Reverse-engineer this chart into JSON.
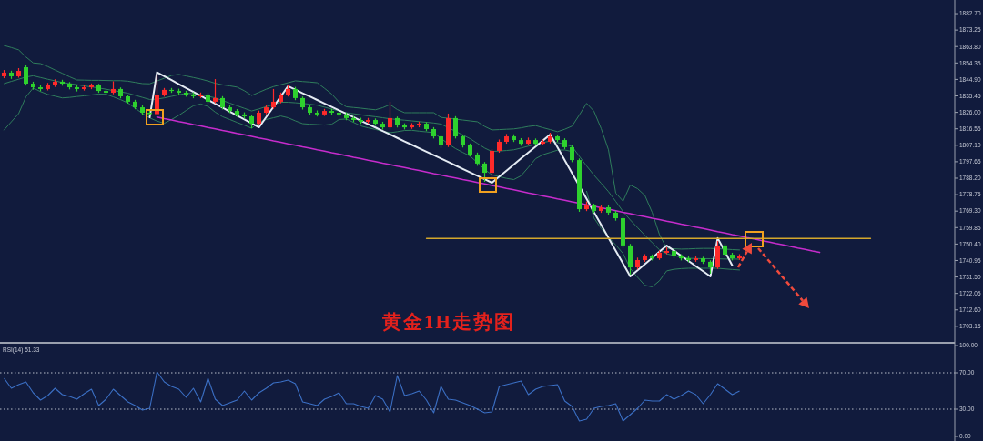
{
  "chart_data": [
    {
      "type": "candlestick",
      "title": "黄金1H走势图",
      "categories": [
        null,
        null,
        null,
        null,
        null,
        null,
        null,
        null,
        null,
        null,
        null,
        null,
        null,
        null,
        null,
        null,
        null,
        null,
        null,
        null,
        null,
        null,
        null,
        null,
        null,
        null,
        null,
        null,
        null,
        null,
        null,
        null,
        null,
        null,
        null,
        null,
        null,
        null,
        null,
        null,
        null,
        null,
        null,
        null,
        null,
        null,
        null,
        null,
        null,
        null,
        null,
        null,
        null,
        null,
        null,
        null,
        null,
        null,
        null,
        null,
        null,
        null,
        null,
        null,
        null,
        null,
        null,
        null,
        null,
        null,
        null,
        null,
        null,
        null,
        null,
        null,
        null,
        null,
        null,
        null,
        null,
        null,
        null,
        null,
        null,
        null,
        null,
        null,
        null,
        null,
        null,
        null,
        null,
        null,
        null,
        null,
        null,
        null,
        null,
        null,
        null,
        null,
        null,
        null,
        null,
        null,
        null,
        null,
        null,
        null,
        null,
        null,
        null,
        null,
        null,
        null,
        null,
        null,
        null,
        null
      ],
      "ohlc": [
        [
          1846.7,
          1850.3,
          1845.6,
          1848.8
        ],
        [
          1848.8,
          1849.9,
          1845.2,
          1846.7
        ],
        [
          1846.7,
          1851.4,
          1845.9,
          1849.8
        ],
        [
          1851.9,
          1853.0,
          1841.4,
          1842.5
        ],
        [
          1842.5,
          1843.6,
          1839.0,
          1840.4
        ],
        [
          1840.4,
          1841.8,
          1838.1,
          1839.4
        ],
        [
          1839.4,
          1842.9,
          1838.6,
          1841.5
        ],
        [
          1841.5,
          1845.0,
          1840.6,
          1843.6
        ],
        [
          1843.6,
          1844.7,
          1841.3,
          1842.5
        ],
        [
          1842.5,
          1843.4,
          1839.2,
          1840.4
        ],
        [
          1840.4,
          1841.5,
          1838.0,
          1839.4
        ],
        [
          1839.4,
          1841.8,
          1838.5,
          1840.4
        ],
        [
          1840.4,
          1842.6,
          1839.3,
          1841.5
        ],
        [
          1841.5,
          1842.4,
          1837.2,
          1838.3
        ],
        [
          1838.3,
          1839.5,
          1836.0,
          1837.3
        ],
        [
          1837.3,
          1843.8,
          1836.4,
          1839.4
        ],
        [
          1839.4,
          1840.3,
          1834.0,
          1835.2
        ],
        [
          1835.2,
          1836.1,
          1831.0,
          1832.1
        ],
        [
          1832.1,
          1833.2,
          1827.8,
          1828.9
        ],
        [
          1828.9,
          1830.0,
          1824.7,
          1825.8
        ],
        [
          1825.8,
          1826.9,
          1824.4,
          1825.0
        ],
        [
          1825.0,
          1847.2,
          1824.2,
          1836.0
        ],
        [
          1836.0,
          1840.0,
          1835.0,
          1838.9
        ],
        [
          1838.9,
          1840.0,
          1837.2,
          1838.3
        ],
        [
          1838.3,
          1839.6,
          1836.1,
          1837.3
        ],
        [
          1837.3,
          1838.4,
          1835.0,
          1836.2
        ],
        [
          1836.2,
          1837.5,
          1834.1,
          1835.2
        ],
        [
          1835.2,
          1837.4,
          1834.2,
          1836.2
        ],
        [
          1836.2,
          1837.1,
          1831.0,
          1832.1
        ],
        [
          1832.1,
          1845.1,
          1831.2,
          1834.2
        ],
        [
          1834.2,
          1835.3,
          1827.7,
          1828.9
        ],
        [
          1828.9,
          1830.1,
          1825.6,
          1826.8
        ],
        [
          1826.8,
          1827.9,
          1823.5,
          1824.8
        ],
        [
          1824.8,
          1826.0,
          1822.4,
          1823.7
        ],
        [
          1823.7,
          1824.6,
          1816.9,
          1819.5
        ],
        [
          1819.5,
          1827.0,
          1818.6,
          1825.8
        ],
        [
          1825.8,
          1830.1,
          1824.9,
          1828.9
        ],
        [
          1828.9,
          1839.4,
          1828.0,
          1832.1
        ],
        [
          1832.1,
          1837.4,
          1831.2,
          1836.2
        ],
        [
          1836.2,
          1841.5,
          1835.1,
          1839.4
        ],
        [
          1839.4,
          1840.6,
          1833.0,
          1834.2
        ],
        [
          1834.2,
          1835.1,
          1827.6,
          1828.9
        ],
        [
          1828.9,
          1830.0,
          1824.6,
          1825.8
        ],
        [
          1825.8,
          1827.1,
          1823.6,
          1824.8
        ],
        [
          1824.8,
          1828.0,
          1823.9,
          1826.8
        ],
        [
          1826.8,
          1828.1,
          1824.7,
          1825.8
        ],
        [
          1825.8,
          1826.9,
          1823.5,
          1824.8
        ],
        [
          1824.8,
          1825.9,
          1821.5,
          1822.7
        ],
        [
          1822.7,
          1823.8,
          1820.4,
          1821.6
        ],
        [
          1821.6,
          1822.9,
          1819.4,
          1820.6
        ],
        [
          1820.6,
          1822.8,
          1819.6,
          1821.6
        ],
        [
          1821.6,
          1822.5,
          1818.3,
          1819.5
        ],
        [
          1819.5,
          1820.6,
          1816.1,
          1817.4
        ],
        [
          1817.4,
          1832.1,
          1816.6,
          1822.7
        ],
        [
          1822.7,
          1823.6,
          1817.3,
          1818.5
        ],
        [
          1818.5,
          1819.7,
          1816.2,
          1817.4
        ],
        [
          1817.4,
          1819.8,
          1816.5,
          1818.5
        ],
        [
          1818.5,
          1820.7,
          1817.4,
          1819.5
        ],
        [
          1819.5,
          1820.4,
          1815.2,
          1816.4
        ],
        [
          1816.4,
          1817.5,
          1811.0,
          1812.2
        ],
        [
          1812.2,
          1813.1,
          1805.6,
          1807.0
        ],
        [
          1807.0,
          1825.3,
          1806.1,
          1822.7
        ],
        [
          1822.7,
          1823.8,
          1811.0,
          1812.2
        ],
        [
          1812.2,
          1813.3,
          1805.8,
          1807.0
        ],
        [
          1807.0,
          1808.1,
          1800.6,
          1801.8
        ],
        [
          1801.8,
          1802.9,
          1795.3,
          1796.6
        ],
        [
          1796.6,
          1797.5,
          1786.1,
          1791.3
        ],
        [
          1791.3,
          1805.0,
          1787.2,
          1803.9
        ],
        [
          1803.9,
          1810.4,
          1802.8,
          1809.1
        ],
        [
          1809.1,
          1813.6,
          1808.0,
          1812.2
        ],
        [
          1812.2,
          1813.4,
          1809.0,
          1810.1
        ],
        [
          1810.1,
          1811.2,
          1806.8,
          1808.0
        ],
        [
          1808.0,
          1811.5,
          1807.1,
          1810.1
        ],
        [
          1810.1,
          1811.0,
          1806.9,
          1808.0
        ],
        [
          1808.0,
          1810.3,
          1807.0,
          1809.1
        ],
        [
          1809.1,
          1814.3,
          1808.2,
          1812.2
        ],
        [
          1812.2,
          1813.3,
          1809.0,
          1810.1
        ],
        [
          1810.1,
          1811.1,
          1804.8,
          1806.0
        ],
        [
          1806.0,
          1807.1,
          1797.4,
          1798.6
        ],
        [
          1798.6,
          1799.5,
          1768.9,
          1770.4
        ],
        [
          1770.4,
          1774.8,
          1769.3,
          1772.5
        ],
        [
          1772.5,
          1773.6,
          1768.2,
          1769.4
        ],
        [
          1769.4,
          1773.0,
          1768.3,
          1771.5
        ],
        [
          1771.5,
          1772.6,
          1767.2,
          1768.4
        ],
        [
          1768.4,
          1769.5,
          1763.8,
          1765.2
        ],
        [
          1765.2,
          1766.1,
          1748.2,
          1749.6
        ],
        [
          1749.6,
          1750.5,
          1732.8,
          1737.0
        ],
        [
          1737.0,
          1742.6,
          1735.8,
          1741.2
        ],
        [
          1741.2,
          1744.6,
          1740.1,
          1743.3
        ],
        [
          1743.3,
          1744.4,
          1741.0,
          1742.2
        ],
        [
          1742.2,
          1746.6,
          1741.3,
          1745.4
        ],
        [
          1745.4,
          1748.5,
          1744.5,
          1746.4
        ],
        [
          1746.4,
          1747.5,
          1742.1,
          1743.3
        ],
        [
          1743.3,
          1744.5,
          1741.0,
          1742.2
        ],
        [
          1742.2,
          1743.3,
          1740.0,
          1741.2
        ],
        [
          1741.2,
          1743.5,
          1740.2,
          1742.2
        ],
        [
          1742.2,
          1743.1,
          1739.0,
          1740.2
        ],
        [
          1740.2,
          1741.1,
          1733.4,
          1737.0
        ],
        [
          1737.0,
          1752.2,
          1736.1,
          1749.6
        ],
        [
          1749.6,
          1750.7,
          1743.1,
          1744.3
        ],
        [
          1744.3,
          1745.4,
          1741.0,
          1742.2
        ],
        [
          1742.2,
          1744.6,
          1741.3,
          1743.3
        ],
        null,
        null,
        null,
        null,
        null,
        null,
        null,
        null,
        null,
        null,
        null,
        null,
        null,
        null,
        null,
        null,
        null,
        null
      ],
      "colors": [
        "#ff2a2a",
        "#2ed12e",
        "#ff2a2a",
        "#2ed12e",
        "#2ed12e",
        "#2ed12e",
        "#ff2a2a",
        "#ff2a2a",
        "#2ed12e",
        "#2ed12e",
        "#2ed12e",
        "#ff2a2a",
        "#ff2a2a",
        "#2ed12e",
        "#2ed12e",
        "#ff2a2a",
        "#2ed12e",
        "#2ed12e",
        "#2ed12e",
        "#2ed12e",
        "#2ed12e",
        "#ff2a2a",
        "#ff2a2a",
        "#2ed12e",
        "#2ed12e",
        "#2ed12e",
        "#2ed12e",
        "#ff2a2a",
        "#2ed12e",
        "#ff2a2a",
        "#2ed12e",
        "#2ed12e",
        "#2ed12e",
        "#2ed12e",
        "#2ed12e",
        "#ff2a2a",
        "#ff2a2a",
        "#ff2a2a",
        "#ff2a2a",
        "#ff2a2a",
        "#2ed12e",
        "#2ed12e",
        "#2ed12e",
        "#2ed12e",
        "#ff2a2a",
        "#2ed12e",
        "#2ed12e",
        "#2ed12e",
        "#2ed12e",
        "#2ed12e",
        "#ff2a2a",
        "#2ed12e",
        "#2ed12e",
        "#ff2a2a",
        "#2ed12e",
        "#2ed12e",
        "#ff2a2a",
        "#ff2a2a",
        "#2ed12e",
        "#2ed12e",
        "#2ed12e",
        "#ff2a2a",
        "#2ed12e",
        "#2ed12e",
        "#2ed12e",
        "#2ed12e",
        "#2ed12e",
        "#ff2a2a",
        "#ff2a2a",
        "#ff2a2a",
        "#2ed12e",
        "#2ed12e",
        "#ff2a2a",
        "#2ed12e",
        "#ff2a2a",
        "#ff2a2a",
        "#2ed12e",
        "#2ed12e",
        "#2ed12e",
        "#2ed12e",
        "#ff2a2a",
        "#2ed12e",
        "#ff2a2a",
        "#2ed12e",
        "#2ed12e",
        "#2ed12e",
        "#2ed12e",
        "#ff2a2a",
        "#ff2a2a",
        "#2ed12e",
        "#ff2a2a",
        "#ff2a2a",
        "#2ed12e",
        "#2ed12e",
        "#2ed12e",
        "#ff2a2a",
        "#2ed12e",
        "#2ed12e",
        "#ff2a2a",
        "#2ed12e",
        "#2ed12e",
        "#ff2a2a",
        null,
        null,
        null,
        null,
        null,
        null,
        null,
        null,
        null,
        null,
        null,
        null,
        null,
        null,
        null,
        null,
        null,
        null
      ],
      "series": [
        {
          "type": "line",
          "color": "#2f7d5c",
          "values": [
            1864.4,
            1863.2,
            1861.9,
            1857.8,
            1854.4,
            1854.0,
            1852.3,
            1850.3,
            1848.4,
            1846.4,
            1844.6,
            1844.5,
            1844.4,
            1844.4,
            1844.3,
            1844.2,
            1844.2,
            1843.9,
            1843.2,
            1842.5,
            1842.4,
            1844.0,
            1845.6,
            1847.2,
            1847.8,
            1846.9,
            1846.0,
            1845.1,
            1844.0,
            1842.7,
            1841.8,
            1841.2,
            1840.5,
            1838.4,
            1835.7,
            1837.5,
            1839.3,
            1840.8,
            1841.9,
            1843.0,
            1844.1,
            1843.7,
            1843.4,
            1843.0,
            1839.8,
            1836.5,
            1831.9,
            1829.2,
            1828.8,
            1828.4,
            1827.9,
            1827.5,
            1828.7,
            1830.5,
            1827.6,
            1825.8,
            1825.8,
            1825.8,
            1825.8,
            1825.8,
            1823.1,
            1822.6,
            1822.1,
            1821.6,
            1821.1,
            1820.6,
            1817.9,
            1815.9,
            1816.1,
            1816.3,
            1816.5,
            1817.1,
            1817.9,
            1818.4,
            1817.2,
            1816.1,
            1814.9,
            1816.3,
            1818.1,
            1824.5,
            1831.2,
            1826.7,
            1816.7,
            1804.5,
            1779.7,
            1775.0,
            1784.3,
            1782.2,
            1778.3,
            1768.6,
            1755.9,
            1747.9,
            1747.7,
            1747.5,
            1747.6,
            1747.8,
            1747.9,
            1747.9,
            1747.7,
            1747.5,
            1747.2,
            1747.0,
            null,
            null,
            null,
            null,
            null,
            null,
            null,
            null,
            null,
            null,
            null,
            null,
            null,
            null,
            null,
            null,
            null,
            null
          ]
        },
        {
          "type": "line",
          "color": "#2f7d5c",
          "values": [
            1842.5,
            1843.8,
            1845.0,
            1846.3,
            1847.0,
            1846.0,
            1845.0,
            1844.1,
            1843.1,
            1842.5,
            1841.9,
            1841.2,
            1840.6,
            1840.0,
            1839.3,
            1838.5,
            1837.8,
            1837.0,
            1835.8,
            1834.6,
            1833.4,
            1833.6,
            1834.3,
            1835.2,
            1836.1,
            1836.9,
            1836.8,
            1836.1,
            1835.3,
            1834.3,
            1832.8,
            1831.3,
            1829.8,
            1828.3,
            1826.8,
            1828.0,
            1829.3,
            1830.5,
            1831.8,
            1831.8,
            1831.5,
            1831.1,
            1830.7,
            1830.1,
            1829.0,
            1827.9,
            1826.8,
            1825.7,
            1825.2,
            1824.6,
            1824.0,
            1823.5,
            1822.9,
            1822.3,
            1821.9,
            1821.5,
            1821.1,
            1820.7,
            1820.3,
            1819.9,
            1819.3,
            1817.2,
            1815.1,
            1813.0,
            1810.9,
            1808.2,
            1805.5,
            1803.5,
            1803.8,
            1804.1,
            1804.5,
            1805.5,
            1806.6,
            1807.6,
            1808.7,
            1809.5,
            1808.6,
            1807.8,
            1806.4,
            1800.8,
            1795.2,
            1790.0,
            1785.3,
            1780.5,
            1774.9,
            1769.1,
            1764.2,
            1759.8,
            1755.4,
            1751.2,
            1747.1,
            1744.8,
            1743.8,
            1742.8,
            1742.2,
            1742.1,
            1742.0,
            1742.0,
            1741.9,
            1741.8,
            1741.8,
            1741.7,
            null,
            null,
            null,
            null,
            null,
            null,
            null,
            null,
            null,
            null,
            null,
            null,
            null,
            null,
            null,
            null,
            null,
            null
          ]
        },
        {
          "type": "line",
          "color": "#2f7d5c",
          "values": [
            1815.9,
            1820.6,
            1825.3,
            1834.9,
            1840.0,
            1837.9,
            1836.3,
            1835.3,
            1834.3,
            1834.6,
            1835.1,
            1835.5,
            1836.0,
            1836.5,
            1836.4,
            1834.9,
            1833.3,
            1831.4,
            1828.4,
            1825.4,
            1822.8,
            1821.0,
            1819.7,
            1821.9,
            1824.3,
            1827.1,
            1829.8,
            1830.8,
            1829.4,
            1826.1,
            1823.5,
            1821.9,
            1820.2,
            1818.6,
            1816.9,
            1820.3,
            1821.9,
            1822.9,
            1823.9,
            1822.9,
            1821.1,
            1819.5,
            1819.2,
            1819.0,
            1818.7,
            1819.2,
            1821.9,
            1822.2,
            1820.2,
            1818.2,
            1817.1,
            1816.2,
            1815.2,
            1814.3,
            1814.9,
            1815.6,
            1815.7,
            1815.2,
            1814.8,
            1814.3,
            1811.1,
            1807.9,
            1805.2,
            1803.0,
            1800.9,
            1797.2,
            1793.2,
            1790.1,
            1789.1,
            1788.1,
            1787.4,
            1789.6,
            1794.4,
            1799.4,
            1801.7,
            1803.0,
            1804.3,
            1804.4,
            1803.5,
            null,
            1780.7,
            1765.4,
            1759.3,
            1754.4,
            1749.9,
            1745.0,
            1736.4,
            1731.3,
            1726.7,
            1725.8,
            1729.3,
            1735.0,
            1735.9,
            1736.3,
            1736.5,
            1736.5,
            1736.5,
            1736.5,
            1736.5,
            1736.1,
            1735.8,
            1735.5,
            null,
            null,
            null,
            null,
            null,
            null,
            null,
            null,
            null,
            null,
            null,
            null,
            null,
            null,
            null,
            null,
            null,
            null
          ]
        },
        {
          "type": "line",
          "color": "#e4ebf3",
          "values": [
            null,
            null,
            null,
            null,
            null,
            null,
            null,
            null,
            null,
            null,
            null,
            null,
            null,
            null,
            null,
            null,
            null,
            null,
            null,
            null,
            1823.2,
            1849.0,
            1846.7,
            1844.5,
            1842.2,
            1840.0,
            1837.7,
            1835.5,
            1833.2,
            1830.9,
            1828.7,
            1826.4,
            1824.2,
            1821.9,
            1819.7,
            1817.4,
            1823.3,
            1829.2,
            1835.1,
            1841.0,
            1839.0,
            1837.0,
            1835.1,
            1833.1,
            1831.1,
            1829.1,
            1827.2,
            1825.2,
            1823.2,
            1821.2,
            1819.2,
            1817.3,
            1815.3,
            1813.3,
            1811.3,
            1809.3,
            1807.4,
            1805.4,
            1803.4,
            1801.4,
            1799.5,
            1797.5,
            1795.5,
            1793.5,
            1791.5,
            1789.6,
            1787.6,
            1785.6,
            1789.1,
            1792.5,
            1796.0,
            1799.5,
            1802.9,
            1806.4,
            1809.8,
            1813.3,
            1805.9,
            1798.5,
            1791.1,
            1783.7,
            1776.3,
            1768.8,
            1761.4,
            1754.0,
            1746.6,
            1739.2,
            1731.8,
            1735.3,
            1738.9,
            1742.4,
            1746.0,
            1749.5,
            1746.6,
            1743.6,
            1740.7,
            1737.7,
            1734.8,
            1731.8,
            1753.8,
            1746.0,
            1738.1,
            null,
            null,
            null,
            null,
            null,
            null,
            null,
            null,
            null,
            null,
            null,
            null,
            null,
            null,
            null,
            null,
            null,
            null,
            null
          ]
        },
        {
          "type": "line",
          "color": "#c62ccc",
          "values": [
            null,
            null,
            null,
            null,
            null,
            null,
            null,
            null,
            null,
            null,
            null,
            null,
            null,
            null,
            null,
            null,
            null,
            null,
            null,
            null,
            null,
            1823.3,
            1822.4,
            1821.6,
            1820.7,
            1819.9,
            1819.0,
            1818.2,
            1817.3,
            1816.5,
            1815.6,
            1814.8,
            1813.9,
            1813.1,
            1812.2,
            1811.3,
            1810.5,
            1809.6,
            1808.8,
            1807.9,
            1807.1,
            1806.2,
            1805.4,
            1804.5,
            1803.7,
            1802.8,
            1802.0,
            1801.1,
            1800.2,
            1799.4,
            1798.5,
            1797.7,
            1796.8,
            1796.0,
            1795.1,
            1794.3,
            1793.4,
            1792.6,
            1791.7,
            1790.8,
            1790.0,
            1789.1,
            1788.3,
            1787.4,
            1786.6,
            1785.7,
            1784.9,
            1784.0,
            1783.2,
            1782.3,
            1781.5,
            1780.6,
            1779.7,
            1778.9,
            1778.0,
            1777.2,
            1776.3,
            1775.5,
            1774.6,
            1773.8,
            1772.9,
            1772.1,
            1771.2,
            1770.4,
            1769.5,
            1768.6,
            1767.8,
            1766.9,
            1766.1,
            1765.2,
            1764.4,
            1763.5,
            1762.7,
            1761.8,
            1761.0,
            1760.1,
            1759.3,
            1758.4,
            1757.5,
            1756.7,
            1755.8,
            1755.0,
            1754.1,
            1753.3,
            1752.4,
            1751.6,
            1750.7,
            1749.9,
            1749.0,
            1748.1,
            1747.3,
            1746.4,
            1745.6,
            null,
            null,
            null,
            null,
            null,
            null,
            null
          ]
        },
        {
          "type": "line",
          "color": "#d4a72c",
          "values": [
            null,
            null,
            null,
            null,
            null,
            null,
            null,
            null,
            null,
            null,
            null,
            null,
            null,
            null,
            null,
            null,
            null,
            null,
            null,
            null,
            null,
            null,
            null,
            null,
            null,
            null,
            null,
            null,
            null,
            null,
            null,
            null,
            null,
            null,
            null,
            null,
            null,
            null,
            null,
            null,
            null,
            null,
            null,
            null,
            null,
            null,
            null,
            null,
            null,
            null,
            null,
            null,
            null,
            null,
            null,
            null,
            null,
            null,
            1753.6,
            1753.6,
            1753.6,
            1753.6,
            1753.6,
            1753.6,
            1753.6,
            1753.6,
            1753.6,
            1753.6,
            1753.6,
            1753.6,
            1753.6,
            1753.6,
            1753.6,
            1753.6,
            1753.6,
            1753.6,
            1753.6,
            1753.6,
            1753.6,
            1753.6,
            1753.6,
            1753.6,
            1753.6,
            1753.6,
            1753.6,
            1753.6,
            1753.6,
            1753.6,
            1753.6,
            1753.6,
            1753.6,
            1753.6,
            1753.6,
            1753.6,
            1753.6,
            1753.6,
            1753.6,
            1753.6,
            1753.6,
            1753.6,
            1753.6,
            1753.6,
            1753.6,
            1753.6,
            1753.6,
            1753.6,
            1753.6,
            1753.6,
            1753.6,
            1753.6,
            1753.6,
            1753.6,
            1753.6,
            1753.6,
            1753.6,
            1753.6,
            1753.6,
            1753.6,
            1753.6,
            1753.6
          ]
        }
      ],
      "ylim": [
        1694.2,
        1890.55
      ],
      "yticks": [
        {
          "value": 1703.15,
          "label": "1703.15"
        },
        {
          "value": 1712.6,
          "label": "1712.60"
        },
        {
          "value": 1722.05,
          "label": "1722.05"
        },
        {
          "value": 1731.5,
          "label": "1731.50"
        },
        {
          "value": 1740.95,
          "label": "1740.95"
        },
        {
          "value": 1750.4,
          "label": "1750.40"
        },
        {
          "value": 1759.85,
          "label": "1759.85"
        },
        {
          "value": 1769.3,
          "label": "1769.30"
        },
        {
          "value": 1778.75,
          "label": "1778.75"
        },
        {
          "value": 1788.2,
          "label": "1788.20"
        },
        {
          "value": 1797.65,
          "label": "1797.65"
        },
        {
          "value": 1807.1,
          "label": "1807.10"
        },
        {
          "value": 1816.55,
          "label": "1816.55"
        },
        {
          "value": 1826,
          "label": "1826.00"
        },
        {
          "value": 1835.45,
          "label": "1835.45"
        },
        {
          "value": 1844.9,
          "label": "1844.90"
        },
        {
          "value": 1854.35,
          "label": "1854.35"
        },
        {
          "value": 1863.8,
          "label": "1863.80"
        },
        {
          "value": 1873.25,
          "label": "1873.25"
        },
        {
          "value": 1882.7,
          "label": "1882.70"
        }
      ]
    },
    {
      "type": "line",
      "title": "RSI(14) 51.33",
      "color": "#3b6fc4",
      "categories": [
        null,
        null,
        null,
        null,
        null,
        null,
        null,
        null,
        null,
        null,
        null,
        null,
        null,
        null,
        null,
        null,
        null,
        null,
        null,
        null,
        null,
        null,
        null,
        null,
        null,
        null,
        null,
        null,
        null,
        null,
        null,
        null,
        null,
        null,
        null,
        null,
        null,
        null,
        null,
        null,
        null,
        null,
        null,
        null,
        null,
        null,
        null,
        null,
        null,
        null,
        null,
        null,
        null,
        null,
        null,
        null,
        null,
        null,
        null,
        null,
        null,
        null,
        null,
        null,
        null,
        null,
        null,
        null,
        null,
        null,
        null,
        null,
        null,
        null,
        null,
        null,
        null,
        null,
        null,
        null,
        null,
        null,
        null,
        null,
        null,
        null,
        null,
        null,
        null,
        null,
        null,
        null,
        null,
        null,
        null,
        null,
        null,
        null,
        null,
        null,
        null,
        null,
        null,
        null,
        null,
        null,
        null,
        null,
        null,
        null,
        null,
        null,
        null,
        null,
        null,
        null,
        null,
        null,
        null,
        null
      ],
      "values": [
        64,
        53,
        57,
        60,
        48,
        40,
        45,
        53,
        46,
        44,
        41,
        47,
        52,
        34,
        41,
        52,
        45,
        38,
        34,
        29,
        31,
        71,
        60,
        55,
        52,
        43,
        53,
        38,
        64,
        41,
        34,
        37,
        40,
        50,
        40,
        48,
        53,
        59,
        60,
        62,
        58,
        38,
        36,
        34,
        41,
        44,
        48,
        36,
        36,
        33,
        31,
        45,
        41,
        27,
        67,
        45,
        47,
        50,
        40,
        26,
        55,
        41,
        40,
        37,
        34,
        30,
        26,
        27,
        55,
        57,
        59,
        61,
        46,
        52,
        55,
        56,
        57,
        39,
        33,
        17,
        19,
        31,
        33,
        34,
        36,
        17,
        24,
        31,
        40,
        39,
        39,
        46,
        41,
        45,
        50,
        46,
        36,
        46,
        58,
        52,
        46,
        50,
        null,
        null,
        null,
        null,
        null,
        null,
        null,
        null,
        null,
        null,
        null,
        null,
        null,
        null,
        null,
        null,
        null,
        null
      ],
      "ylim": [
        -5,
        102
      ],
      "yticks": [
        {
          "value": 100,
          "label": "100.00"
        },
        {
          "value": 70,
          "label": "70.00"
        },
        {
          "value": 30,
          "label": "30.00"
        },
        {
          "value": 0,
          "label": "0.00"
        }
      ],
      "ref_lines": [
        {
          "axis": "y",
          "value": 70,
          "color": "#b8bdca",
          "line_style": "dotted"
        },
        {
          "axis": "y",
          "value": 30,
          "color": "#b8bdca",
          "line_style": "dotted"
        }
      ]
    }
  ]
}
